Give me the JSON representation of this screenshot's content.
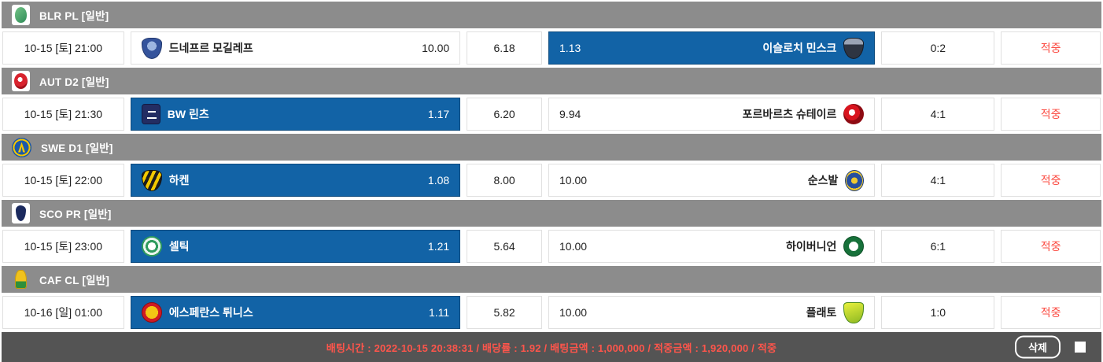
{
  "colors": {
    "selected_blue": "#1263a6",
    "league_header_gray": "#8c8c8c",
    "footer_dark": "#545454",
    "hit_red": "#fb4b42"
  },
  "sections": [
    {
      "league": "BLR PL [일반]",
      "league_icon": "belarus-premier-league-logo",
      "time": "10-15 [토] 21:00",
      "home": {
        "name": "드네프르 모길레프",
        "odds": "10.00",
        "logo": "dnepr-mogilev-crest",
        "selected": false
      },
      "draw": "6.18",
      "away": {
        "name": "이슬로치 민스크",
        "odds": "1.13",
        "logo": "isloch-minsk-crest",
        "selected": true
      },
      "score": "0:2",
      "status": "적중"
    },
    {
      "league": "AUT D2 [일반]",
      "league_icon": "austria-2-liga-logo",
      "time": "10-15 [토] 21:30",
      "home": {
        "name": "BW 린츠",
        "odds": "1.17",
        "logo": "bw-linz-crest",
        "selected": true
      },
      "draw": "6.20",
      "away": {
        "name": "포르바르츠 슈테이르",
        "odds": "9.94",
        "logo": "vorwarts-steyr-crest",
        "selected": false
      },
      "score": "4:1",
      "status": "적중"
    },
    {
      "league": "SWE D1 [일반]",
      "league_icon": "sweden-allsvenskan-logo",
      "time": "10-15 [토] 22:00",
      "home": {
        "name": "하켄",
        "odds": "1.08",
        "logo": "hacken-crest",
        "selected": true
      },
      "draw": "8.00",
      "away": {
        "name": "순스발",
        "odds": "10.00",
        "logo": "sundsvall-crest",
        "selected": false
      },
      "score": "4:1",
      "status": "적중"
    },
    {
      "league": "SCO PR [일반]",
      "league_icon": "scotland-premiership-logo",
      "time": "10-15 [토] 23:00",
      "home": {
        "name": "셀틱",
        "odds": "1.21",
        "logo": "celtic-crest",
        "selected": true
      },
      "draw": "5.64",
      "away": {
        "name": "하이버니언",
        "odds": "10.00",
        "logo": "hibernian-crest",
        "selected": false
      },
      "score": "6:1",
      "status": "적중"
    },
    {
      "league": "CAF CL [일반]",
      "league_icon": "caf-champions-league-logo",
      "time": "10-16 [일] 01:00",
      "home": {
        "name": "에스페란스 튀니스",
        "odds": "1.11",
        "logo": "esperance-tunis-crest",
        "selected": true
      },
      "draw": "5.82",
      "away": {
        "name": "플래토",
        "odds": "10.00",
        "logo": "plateau-united-crest",
        "selected": false
      },
      "score": "1:0",
      "status": "적중"
    }
  ],
  "footer": {
    "summary": "배팅시간 : 2022-10-15 20:38:31   /   배당률 : 1.92   /   배팅금액 : 1,000,000   /   적중금액 : 1,920,000   /   적중",
    "delete_label": "삭제"
  }
}
